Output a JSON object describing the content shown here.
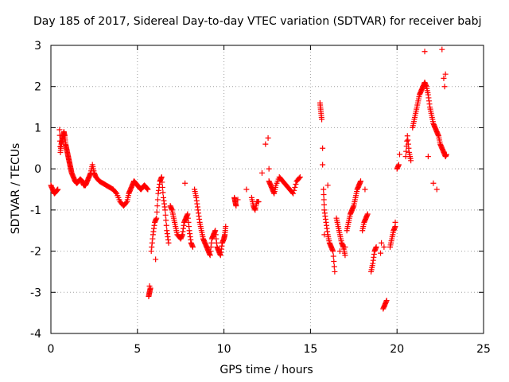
{
  "chart_data": {
    "type": "scatter",
    "title": "Day 185 of 2017, Sidereal Day-to-day VTEC variation (SDTVAR) for receiver babj",
    "xlabel": "GPS time / hours",
    "ylabel": "SDTVAR / TECUs",
    "xlim": [
      0,
      25
    ],
    "ylim": [
      -4,
      3
    ],
    "xticks": [
      "0",
      "5",
      "10",
      "15",
      "20",
      "25"
    ],
    "yticks": [
      "-4",
      "-3",
      "-2",
      "-1",
      "0",
      "1",
      "2",
      "3"
    ],
    "grid": true,
    "marker": "+",
    "color": "#ff0000",
    "series": [
      {
        "name": "SDTVAR",
        "x": [
          0.0,
          0.1,
          0.2,
          0.3,
          0.4,
          0.5,
          0.55,
          0.6,
          0.65,
          0.7,
          0.75,
          0.8,
          0.85,
          0.9,
          0.95,
          1.0,
          1.05,
          1.1,
          1.15,
          1.2,
          1.3,
          1.4,
          1.5,
          1.6,
          1.7,
          1.8,
          1.9,
          2.0,
          2.1,
          2.2,
          2.3,
          2.4,
          2.5,
          2.6,
          2.8,
          3.0,
          3.2,
          3.4,
          3.6,
          3.8,
          4.0,
          4.2,
          4.4,
          4.5,
          4.6,
          4.7,
          4.8,
          4.9,
          5.0,
          5.1,
          5.2,
          5.3,
          5.4,
          5.5,
          5.6,
          5.65,
          5.7,
          5.75,
          5.8,
          5.9,
          6.0,
          6.1,
          6.2,
          6.3,
          6.4,
          6.5,
          6.6,
          6.7,
          6.8,
          6.9,
          7.0,
          7.1,
          7.2,
          7.3,
          7.5,
          7.6,
          7.7,
          7.8,
          7.9,
          8.0,
          8.1,
          8.2,
          8.3,
          8.4,
          8.5,
          8.6,
          8.7,
          8.8,
          8.9,
          9.0,
          9.1,
          9.2,
          9.3,
          9.4,
          9.5,
          9.6,
          9.7,
          9.8,
          9.9,
          10.0,
          10.05,
          10.1,
          10.6,
          10.65,
          10.7,
          11.3,
          11.6,
          11.7,
          11.8,
          11.9,
          12.0,
          12.2,
          12.4,
          12.6,
          12.7,
          12.8,
          12.9,
          13.0,
          13.2,
          13.4,
          13.6,
          13.8,
          14.0,
          14.2,
          14.4,
          15.55,
          15.6,
          15.65,
          15.7,
          15.75,
          15.8,
          15.9,
          16.0,
          16.1,
          16.2,
          16.3,
          16.4,
          16.5,
          16.6,
          16.7,
          16.8,
          16.9,
          17.0,
          17.1,
          17.2,
          17.3,
          17.4,
          17.5,
          17.6,
          17.7,
          17.8,
          17.9,
          18.0,
          18.1,
          18.2,
          18.3,
          18.5,
          18.6,
          18.7,
          18.8,
          19.1,
          19.2,
          19.3,
          19.4,
          19.6,
          19.7,
          19.8,
          19.9,
          20.0,
          20.1,
          20.5,
          20.6,
          20.7,
          20.8,
          20.9,
          21.0,
          21.1,
          21.2,
          21.3,
          21.4,
          21.5,
          21.6,
          21.7,
          21.8,
          21.9,
          22.0,
          22.1,
          22.2,
          22.3,
          22.4,
          22.5,
          22.6,
          22.7,
          22.8,
          22.85
        ],
        "y": [
          -0.4,
          -0.5,
          -0.6,
          -0.55,
          -0.5,
          0.95,
          0.4,
          0.6,
          0.7,
          0.8,
          0.9,
          0.8,
          0.6,
          0.5,
          0.4,
          0.3,
          0.2,
          0.1,
          0.0,
          -0.1,
          -0.2,
          -0.3,
          -0.35,
          -0.3,
          -0.25,
          -0.3,
          -0.4,
          -0.4,
          -0.3,
          -0.2,
          -0.1,
          0.1,
          -0.1,
          -0.2,
          -0.3,
          -0.35,
          -0.4,
          -0.45,
          -0.5,
          -0.6,
          -0.8,
          -0.9,
          -0.8,
          -0.6,
          -0.5,
          -0.4,
          -0.3,
          -0.35,
          -0.4,
          -0.45,
          -0.5,
          -0.45,
          -0.4,
          -0.45,
          -0.5,
          -3.1,
          -3.0,
          -2.9,
          -2.0,
          -1.6,
          -1.3,
          -1.2,
          -0.6,
          -0.3,
          -0.2,
          -0.7,
          -1.0,
          -1.5,
          -1.8,
          -0.9,
          -1.0,
          -1.2,
          -1.4,
          -1.6,
          -1.7,
          -1.6,
          -1.3,
          -1.2,
          -1.1,
          -1.5,
          -1.8,
          -1.9,
          -0.5,
          -0.7,
          -1.0,
          -1.3,
          -1.5,
          -1.7,
          -1.8,
          -1.9,
          -2.0,
          -2.1,
          -1.7,
          -1.6,
          -1.5,
          -1.9,
          -2.0,
          -2.1,
          -1.8,
          -1.7,
          -1.6,
          -1.4,
          -0.7,
          -0.8,
          -0.9,
          -0.5,
          -0.7,
          -0.9,
          -1.0,
          -0.8,
          -0.8,
          -0.1,
          0.6,
          -0.3,
          -0.4,
          -0.5,
          -0.6,
          -0.4,
          -0.2,
          -0.3,
          -0.4,
          -0.5,
          -0.6,
          -0.3,
          -0.2,
          1.6,
          1.4,
          1.2,
          0.5,
          -0.5,
          -1.0,
          -1.3,
          -1.6,
          -1.8,
          -1.9,
          -2.0,
          -2.5,
          -1.2,
          -1.4,
          -1.6,
          -1.8,
          -1.9,
          -2.1,
          -1.5,
          -1.3,
          -1.1,
          -1.0,
          -0.9,
          -0.7,
          -0.5,
          -0.4,
          -0.3,
          -1.5,
          -1.3,
          -1.2,
          -1.1,
          -2.5,
          -2.3,
          -2.0,
          -1.9,
          -1.8,
          -3.4,
          -3.3,
          -3.2,
          -1.9,
          -1.7,
          -1.5,
          -1.4,
          0.0,
          0.1,
          0.3,
          0.8,
          0.4,
          0.2,
          1.0,
          1.2,
          1.4,
          1.6,
          1.8,
          1.9,
          2.0,
          2.1,
          2.0,
          1.8,
          1.5,
          1.3,
          1.1,
          1.0,
          0.9,
          0.8,
          0.6,
          0.5,
          0.4,
          0.3,
          0.35
        ],
        "extra_points": [
          {
            "x": 5.7,
            "y": -2.85
          },
          {
            "x": 6.05,
            "y": -2.2
          },
          {
            "x": 7.75,
            "y": -0.35
          },
          {
            "x": 10.8,
            "y": -0.75
          },
          {
            "x": 12.55,
            "y": 0.75
          },
          {
            "x": 12.6,
            "y": 0.0
          },
          {
            "x": 15.7,
            "y": 0.1
          },
          {
            "x": 15.8,
            "y": -1.6
          },
          {
            "x": 16.0,
            "y": -0.4
          },
          {
            "x": 16.7,
            "y": -2.0
          },
          {
            "x": 17.0,
            "y": -1.9
          },
          {
            "x": 18.15,
            "y": -0.5
          },
          {
            "x": 19.05,
            "y": -2.05
          },
          {
            "x": 19.25,
            "y": -1.9
          },
          {
            "x": 19.9,
            "y": -1.3
          },
          {
            "x": 20.15,
            "y": 0.35
          },
          {
            "x": 21.6,
            "y": 2.85
          },
          {
            "x": 21.8,
            "y": 0.3
          },
          {
            "x": 22.1,
            "y": -0.35
          },
          {
            "x": 22.3,
            "y": -0.5
          },
          {
            "x": 22.6,
            "y": 2.9
          },
          {
            "x": 22.7,
            "y": 2.2
          },
          {
            "x": 22.75,
            "y": 2.0
          },
          {
            "x": 22.8,
            "y": 2.3
          }
        ]
      }
    ]
  }
}
